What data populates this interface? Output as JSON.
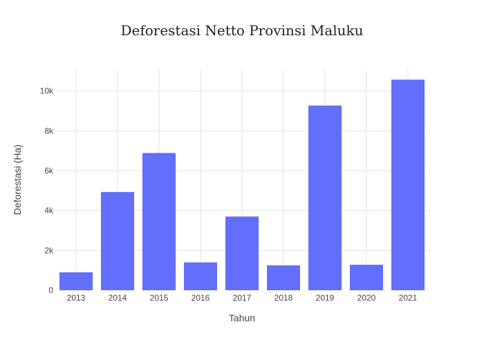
{
  "chart_data": {
    "type": "bar",
    "title": "Deforestasi Netto Provinsi Maluku",
    "xlabel": "Tahun",
    "ylabel": "Deforestasi (Ha)",
    "categories": [
      "2013",
      "2014",
      "2015",
      "2016",
      "2017",
      "2018",
      "2019",
      "2020",
      "2021"
    ],
    "values": [
      900,
      4930,
      6890,
      1400,
      3700,
      1250,
      9270,
      1280,
      10570
    ],
    "ylim": [
      0,
      11100
    ],
    "yticks": [
      0,
      2000,
      4000,
      6000,
      8000,
      10000
    ],
    "ytick_labels": [
      "0",
      "2k",
      "4k",
      "6k",
      "8k",
      "10k"
    ],
    "grid": true,
    "bar_color": "#636efa"
  }
}
